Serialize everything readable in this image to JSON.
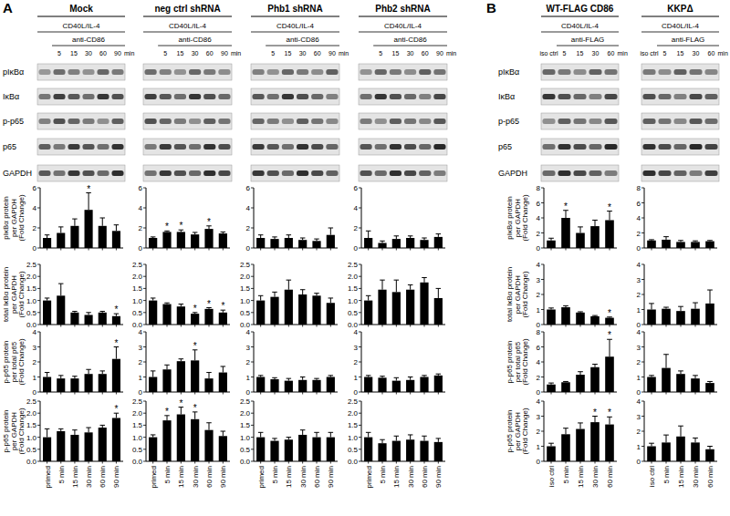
{
  "panels": [
    {
      "label": "A",
      "groups": [
        {
          "title": "Mock",
          "treatment": "CD40L/IL-4",
          "stimulus": "anti-CD86",
          "times": [
            "5",
            "15",
            "30",
            "60",
            "90"
          ],
          "unit": "min"
        },
        {
          "title": "neg ctrl shRNA",
          "treatment": "CD40L/IL-4",
          "stimulus": "anti-CD86",
          "times": [
            "5",
            "15",
            "30",
            "60",
            "90"
          ],
          "unit": "min"
        },
        {
          "title": "Phb1 shRNA",
          "treatment": "CD40L/IL-4",
          "stimulus": "anti-CD86",
          "times": [
            "5",
            "15",
            "30",
            "60",
            "90"
          ],
          "unit": "min"
        },
        {
          "title": "Phb2 shRNA",
          "treatment": "CD40L/IL-4",
          "stimulus": "anti-CD86",
          "times": [
            "5",
            "15",
            "30",
            "60",
            "90"
          ],
          "unit": "min"
        }
      ]
    },
    {
      "label": "B",
      "groups": [
        {
          "title": "WT-FLAG CD86",
          "treatment": "CD40L/IL-4",
          "control": "iso ctrl",
          "stimulus": "anti-FLAG",
          "times": [
            "5",
            "15",
            "30",
            "60"
          ],
          "unit": "min"
        },
        {
          "title": "KKPΔ",
          "treatment": "CD40L/IL-4",
          "control": "iso ctrl",
          "stimulus": "anti-FLAG",
          "times": [
            "5",
            "15",
            "30",
            "60"
          ],
          "unit": "min"
        }
      ]
    }
  ],
  "blot_rows": [
    "pIκBα",
    "IκBα",
    "p-p65",
    "p65",
    "GAPDH"
  ],
  "chart_data": [
    {
      "type": "bar",
      "ylabel": "pIκBα protein\nper GAPDH\n(Fold Change)",
      "values": [
        1.0,
        1.5,
        2.2,
        3.8,
        2.2,
        1.7
      ],
      "errors": [
        0.3,
        0.6,
        0.7,
        1.7,
        0.8,
        0.6
      ],
      "significance": [
        null,
        null,
        null,
        "*",
        null,
        null
      ],
      "color": "#000000",
      "ylim": [
        0,
        6
      ],
      "yticks": [
        0,
        2,
        4,
        6
      ],
      "grid": false,
      "tick_labels": "y"
    },
    {
      "type": "bar",
      "ylabel": "total IκBα protein\nper GAPDH\n(Fold Change)",
      "values": [
        1.0,
        1.2,
        0.5,
        0.4,
        0.5,
        0.35
      ],
      "errors": [
        0.1,
        0.5,
        0.05,
        0.1,
        0.05,
        0.1
      ],
      "significance": [
        null,
        null,
        null,
        null,
        null,
        "*"
      ],
      "color": "#000000",
      "ylim": [
        0,
        2.5
      ],
      "yticks": [
        {
          "value": 0,
          "label": "0.0"
        },
        0.5,
        {
          "value": 1,
          "label": "1.0"
        },
        1.5,
        {
          "value": 2,
          "label": "2.0"
        },
        2.5
      ],
      "grid": false,
      "tick_labels": "y"
    },
    {
      "type": "bar",
      "ylabel": "p-p65 protein\nper total p65\n(Fold Change)",
      "values": [
        1.0,
        0.9,
        0.9,
        1.2,
        1.2,
        2.2
      ],
      "errors": [
        0.3,
        0.2,
        0.15,
        0.3,
        0.2,
        0.8
      ],
      "significance": [
        null,
        null,
        null,
        null,
        null,
        "*"
      ],
      "color": "#000000",
      "ylim": [
        0,
        4
      ],
      "yticks": [
        0,
        1,
        2,
        3,
        4
      ],
      "grid": false,
      "tick_labels": "y"
    },
    {
      "type": "bar",
      "ylabel": "p-p65 protein\nper GAPDH\n(Fold Change)",
      "categories": [
        "primed",
        "5 min",
        "15 min",
        "30 min",
        "60 min",
        "90 min"
      ],
      "values": [
        1.0,
        1.25,
        1.1,
        1.2,
        1.4,
        1.8
      ],
      "errors": [
        0.35,
        0.1,
        0.2,
        0.2,
        0.1,
        0.2
      ],
      "significance": [
        null,
        null,
        null,
        null,
        null,
        "*"
      ],
      "color": "#000000",
      "ylim": [
        0,
        2.5
      ],
      "yticks": [
        {
          "value": 0,
          "label": "0.0"
        },
        0.5,
        {
          "value": 1,
          "label": "1.0"
        },
        1.5,
        {
          "value": 2,
          "label": "2.0"
        },
        2.5
      ],
      "grid": false
    },
    {
      "type": "bar",
      "values": [
        1.0,
        1.6,
        1.6,
        1.35,
        1.9,
        1.45
      ],
      "errors": [
        0.1,
        0.1,
        0.2,
        0.2,
        0.3,
        0.15
      ],
      "significance": [
        null,
        "*",
        "*",
        null,
        "*",
        null
      ],
      "color": "#000000",
      "ylim": [
        0,
        6
      ],
      "yticks": [
        0,
        2,
        4,
        6
      ],
      "grid": false,
      "tick_labels": "y"
    },
    {
      "type": "bar",
      "values": [
        1.0,
        0.85,
        0.75,
        0.45,
        0.65,
        0.5
      ],
      "errors": [
        0.1,
        0.05,
        0.1,
        0.05,
        0.05,
        0.1
      ],
      "significance": [
        null,
        null,
        null,
        "*",
        "*",
        "*"
      ],
      "color": "#000000",
      "ylim": [
        0,
        2.5
      ],
      "yticks": [
        {
          "value": 0,
          "label": "0.0"
        },
        0.5,
        {
          "value": 1,
          "label": "1.0"
        },
        1.5,
        {
          "value": 2,
          "label": "2.0"
        },
        2.5
      ],
      "grid": false,
      "tick_labels": "y"
    },
    {
      "type": "bar",
      "values": [
        1.0,
        1.5,
        2.05,
        2.1,
        0.9,
        1.3
      ],
      "errors": [
        0.4,
        0.3,
        0.15,
        0.7,
        0.4,
        0.4
      ],
      "significance": [
        null,
        null,
        null,
        "*",
        null,
        null
      ],
      "color": "#000000",
      "ylim": [
        0,
        4
      ],
      "yticks": [
        0,
        1,
        2,
        3,
        4
      ],
      "grid": false,
      "tick_labels": "y"
    },
    {
      "type": "bar",
      "categories": [
        "primed",
        "5 min",
        "15 min",
        "30 min",
        "60 min",
        "90 min"
      ],
      "values": [
        1.0,
        1.7,
        1.95,
        1.75,
        1.3,
        1.05
      ],
      "errors": [
        0.1,
        0.2,
        0.3,
        0.3,
        0.3,
        0.2
      ],
      "significance": [
        null,
        "*",
        "*",
        "*",
        null,
        null
      ],
      "color": "#000000",
      "ylim": [
        0,
        2.5
      ],
      "yticks": [
        {
          "value": 0,
          "label": "0.0"
        },
        0.5,
        {
          "value": 1,
          "label": "1.0"
        },
        1.5,
        {
          "value": 2,
          "label": "2.0"
        },
        2.5
      ],
      "grid": false
    },
    {
      "type": "bar",
      "values": [
        1.0,
        0.9,
        1.0,
        0.8,
        0.7,
        1.3
      ],
      "errors": [
        0.3,
        0.2,
        0.3,
        0.2,
        0.2,
        0.7
      ],
      "significance": [
        null,
        null,
        null,
        null,
        null,
        null
      ],
      "color": "#000000",
      "ylim": [
        0,
        6
      ],
      "yticks": [
        0,
        2,
        4,
        6
      ],
      "grid": false,
      "tick_labels": "y"
    },
    {
      "type": "bar",
      "values": [
        1.0,
        1.15,
        1.45,
        1.25,
        1.2,
        0.9
      ],
      "errors": [
        0.2,
        0.2,
        0.4,
        0.2,
        0.1,
        0.2
      ],
      "significance": [
        null,
        null,
        null,
        null,
        null,
        null
      ],
      "color": "#000000",
      "ylim": [
        0,
        2.5
      ],
      "yticks": [
        {
          "value": 0,
          "label": "0.0"
        },
        0.5,
        {
          "value": 1,
          "label": "1.0"
        },
        1.5,
        {
          "value": 2,
          "label": "2.0"
        },
        2.5
      ],
      "grid": false,
      "tick_labels": "y"
    },
    {
      "type": "bar",
      "values": [
        1.0,
        0.85,
        0.75,
        0.8,
        0.8,
        1.0
      ],
      "errors": [
        0.1,
        0.1,
        0.15,
        0.2,
        0.1,
        0.1
      ],
      "significance": [
        null,
        null,
        null,
        null,
        null,
        null
      ],
      "color": "#000000",
      "ylim": [
        0,
        4
      ],
      "yticks": [
        0,
        1,
        2,
        3,
        4
      ],
      "grid": false,
      "tick_labels": "y"
    },
    {
      "type": "bar",
      "categories": [
        "primed",
        "5 min",
        "15 min",
        "30 min",
        "60 min",
        "90 min"
      ],
      "values": [
        1.0,
        0.85,
        0.9,
        1.1,
        1.0,
        1.0
      ],
      "errors": [
        0.2,
        0.1,
        0.1,
        0.2,
        0.2,
        0.2
      ],
      "significance": [
        null,
        null,
        null,
        null,
        null,
        null
      ],
      "color": "#000000",
      "ylim": [
        0,
        2.5
      ],
      "yticks": [
        {
          "value": 0,
          "label": "0.0"
        },
        0.5,
        {
          "value": 1,
          "label": "1.0"
        },
        1.5,
        {
          "value": 2,
          "label": "2.0"
        },
        2.5
      ],
      "grid": false
    },
    {
      "type": "bar",
      "values": [
        1.0,
        0.5,
        0.9,
        1.0,
        0.8,
        1.1
      ],
      "errors": [
        0.7,
        0.2,
        0.3,
        0.2,
        0.2,
        0.3
      ],
      "significance": [
        null,
        null,
        null,
        null,
        null,
        null
      ],
      "color": "#000000",
      "ylim": [
        0,
        6
      ],
      "yticks": [
        0,
        2,
        4,
        6
      ],
      "grid": false,
      "tick_labels": "y"
    },
    {
      "type": "bar",
      "values": [
        1.0,
        1.45,
        1.35,
        1.45,
        1.75,
        1.1
      ],
      "errors": [
        0.2,
        0.4,
        0.5,
        0.2,
        0.2,
        0.4
      ],
      "significance": [
        null,
        null,
        null,
        null,
        null,
        null
      ],
      "color": "#000000",
      "ylim": [
        0,
        2.5
      ],
      "yticks": [
        {
          "value": 0,
          "label": "0.0"
        },
        0.5,
        {
          "value": 1,
          "label": "1.0"
        },
        1.5,
        {
          "value": 2,
          "label": "2.0"
        },
        2.5
      ],
      "grid": false,
      "tick_labels": "y"
    },
    {
      "type": "bar",
      "values": [
        1.0,
        0.95,
        0.75,
        0.8,
        1.0,
        1.1
      ],
      "errors": [
        0.1,
        0.1,
        0.2,
        0.2,
        0.1,
        0.1
      ],
      "significance": [
        null,
        null,
        null,
        null,
        null,
        null
      ],
      "color": "#000000",
      "ylim": [
        0,
        4
      ],
      "yticks": [
        0,
        1,
        2,
        3,
        4
      ],
      "grid": false,
      "tick_labels": "y"
    },
    {
      "type": "bar",
      "categories": [
        "primed",
        "5 min",
        "15 min",
        "30 min",
        "60 min",
        "90 min"
      ],
      "values": [
        1.0,
        0.75,
        0.85,
        0.9,
        0.85,
        0.8
      ],
      "errors": [
        0.2,
        0.15,
        0.2,
        0.2,
        0.2,
        0.15
      ],
      "significance": [
        null,
        null,
        null,
        null,
        null,
        null
      ],
      "color": "#000000",
      "ylim": [
        0,
        2.5
      ],
      "yticks": [
        {
          "value": 0,
          "label": "0.0"
        },
        0.5,
        {
          "value": 1,
          "label": "1.0"
        },
        1.5,
        {
          "value": 2,
          "label": "2.0"
        },
        2.5
      ],
      "grid": false
    },
    {
      "type": "bar",
      "ylabel": "pIκBα protein\nper GAPDH\n(Fold Change)",
      "values": [
        1.0,
        4.0,
        2.0,
        2.9,
        3.7
      ],
      "errors": [
        0.3,
        1.0,
        0.8,
        0.8,
        1.2
      ],
      "significance": [
        null,
        "*",
        null,
        null,
        "*"
      ],
      "color": "#000000",
      "ylim": [
        0,
        8
      ],
      "yticks": [
        0,
        2,
        4,
        6,
        8
      ],
      "grid": false,
      "tick_labels": "y"
    },
    {
      "type": "bar",
      "ylabel": "total IκBα protein\nper GAPDH\n(Fold Change)",
      "values": [
        1.0,
        1.15,
        0.8,
        0.55,
        0.45
      ],
      "errors": [
        0.1,
        0.1,
        0.05,
        0.05,
        0.05
      ],
      "significance": [
        null,
        null,
        null,
        null,
        "*"
      ],
      "color": "#000000",
      "ylim": [
        0,
        4
      ],
      "yticks": [
        0,
        1,
        2,
        3,
        4
      ],
      "grid": false,
      "tick_labels": "y"
    },
    {
      "type": "bar",
      "ylabel": "p-p65 protein\nper total p65\n(Fold Change)",
      "values": [
        1.0,
        1.3,
        2.3,
        3.3,
        4.7
      ],
      "errors": [
        0.2,
        0.1,
        0.4,
        0.4,
        2.3
      ],
      "significance": [
        null,
        null,
        null,
        null,
        "*"
      ],
      "color": "#000000",
      "ylim": [
        0,
        8
      ],
      "yticks": [
        0,
        2,
        4,
        6,
        8
      ],
      "grid": false,
      "tick_labels": "y"
    },
    {
      "type": "bar",
      "ylabel": "p-p65 protein\nper GAPDH\n(Fold Change)",
      "categories": [
        "iso ctrl",
        "5 min",
        "15 min",
        "30 min",
        "60 min"
      ],
      "values": [
        1.0,
        1.8,
        2.15,
        2.6,
        2.45
      ],
      "errors": [
        0.2,
        0.4,
        0.4,
        0.4,
        0.5
      ],
      "significance": [
        null,
        null,
        null,
        "*",
        "*"
      ],
      "color": "#000000",
      "ylim": [
        0,
        4
      ],
      "yticks": [
        0,
        1,
        2,
        3,
        4
      ],
      "grid": false
    },
    {
      "type": "bar",
      "values": [
        1.0,
        1.1,
        0.8,
        0.8,
        0.9
      ],
      "errors": [
        0.1,
        0.4,
        0.2,
        0.15,
        0.1
      ],
      "significance": [
        null,
        null,
        null,
        null,
        null
      ],
      "color": "#000000",
      "ylim": [
        0,
        8
      ],
      "yticks": [
        0,
        2,
        4,
        6,
        8
      ],
      "grid": false,
      "tick_labels": "y"
    },
    {
      "type": "bar",
      "values": [
        1.0,
        1.05,
        0.9,
        1.05,
        1.4
      ],
      "errors": [
        0.4,
        0.1,
        0.3,
        0.4,
        0.9
      ],
      "significance": [
        null,
        null,
        null,
        null,
        null
      ],
      "color": "#000000",
      "ylim": [
        0,
        4
      ],
      "yticks": [
        0,
        1,
        2,
        3,
        4
      ],
      "grid": false,
      "tick_labels": "y"
    },
    {
      "type": "bar",
      "values": [
        1.0,
        1.6,
        1.2,
        0.9,
        0.6
      ],
      "errors": [
        0.1,
        0.9,
        0.2,
        0.2,
        0.1
      ],
      "significance": [
        null,
        null,
        null,
        null,
        null
      ],
      "color": "#000000",
      "ylim": [
        0,
        4
      ],
      "yticks": [
        0,
        1,
        2,
        3,
        4
      ],
      "grid": false,
      "tick_labels": "y"
    },
    {
      "type": "bar",
      "categories": [
        "iso ctrl",
        "5 min",
        "15 min",
        "30 min",
        "60 min"
      ],
      "values": [
        1.0,
        1.25,
        1.65,
        1.25,
        0.8
      ],
      "errors": [
        0.2,
        0.5,
        0.7,
        0.3,
        0.2
      ],
      "significance": [
        null,
        null,
        null,
        null,
        null
      ],
      "color": "#000000",
      "ylim": [
        0,
        4
      ],
      "yticks": [
        0,
        1,
        2,
        3,
        4
      ],
      "grid": false
    }
  ]
}
